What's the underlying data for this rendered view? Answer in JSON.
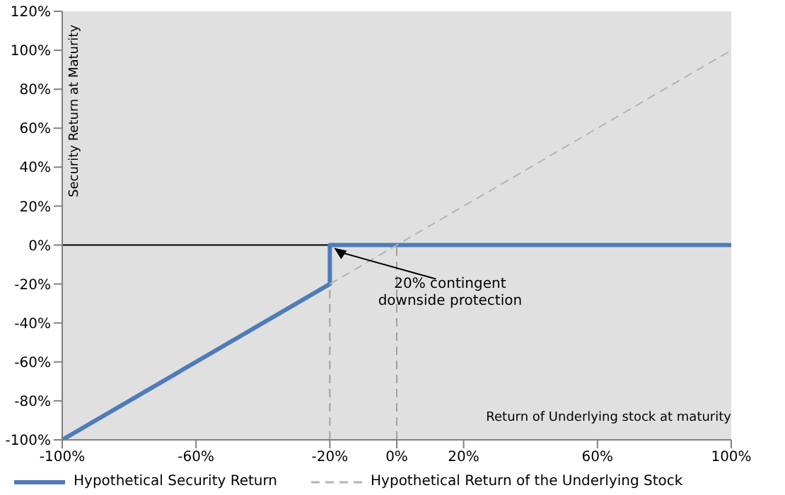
{
  "chart_data": {
    "type": "line",
    "xlabel": "Return of Underlying stock at maturity",
    "ylabel": "Security Return at Maturity",
    "xlim": [
      -100,
      100
    ],
    "xticks": [
      {
        "value": -100,
        "label": "-100%"
      },
      {
        "value": -60,
        "label": "-60%"
      },
      {
        "value": -20,
        "label": "-20%"
      },
      {
        "value": 0,
        "label": "0%"
      },
      {
        "value": 20,
        "label": "20%"
      },
      {
        "value": 60,
        "label": "60%"
      },
      {
        "value": 100,
        "label": "100%"
      }
    ],
    "ylim": [
      -100,
      120
    ],
    "yticks": [
      {
        "value": -100,
        "label": "-100%"
      },
      {
        "value": -80,
        "label": "-80%"
      },
      {
        "value": -60,
        "label": "-60%"
      },
      {
        "value": -40,
        "label": "-40%"
      },
      {
        "value": -20,
        "label": "-20%"
      },
      {
        "value": 0,
        "label": "0%"
      },
      {
        "value": 20,
        "label": "20%"
      },
      {
        "value": 40,
        "label": "40%"
      },
      {
        "value": 60,
        "label": "60%"
      },
      {
        "value": 80,
        "label": "80%"
      },
      {
        "value": 100,
        "label": "100%"
      },
      {
        "value": 120,
        "label": "120%"
      }
    ],
    "series": [
      {
        "name": "Hypothetical Security Return",
        "color": "#4f7cb8",
        "x": [
          -100,
          -20,
          -20,
          100
        ],
        "values": [
          -100,
          -20,
          0,
          0
        ],
        "line_style": "solid"
      },
      {
        "name": "Hypothetical Return of the Underlying Stock",
        "color": "#b4b4b4",
        "x": [
          -20,
          100
        ],
        "values": [
          -20,
          100
        ],
        "line_style": "dashed"
      }
    ],
    "ref_lines": [
      {
        "axis": "y",
        "value": 0,
        "color": "#000000",
        "line_style": "solid"
      },
      {
        "axis": "x",
        "value": -20,
        "color": "#a0a0a0",
        "line_style": "dashed"
      },
      {
        "axis": "x",
        "value": 0,
        "color": "#a0a0a0",
        "line_style": "dashed"
      }
    ],
    "annotations": [
      {
        "text": "20% contingent downside protection",
        "x": -20,
        "y": 0
      }
    ],
    "grid": false,
    "legend": "bottom",
    "marker": "none"
  }
}
